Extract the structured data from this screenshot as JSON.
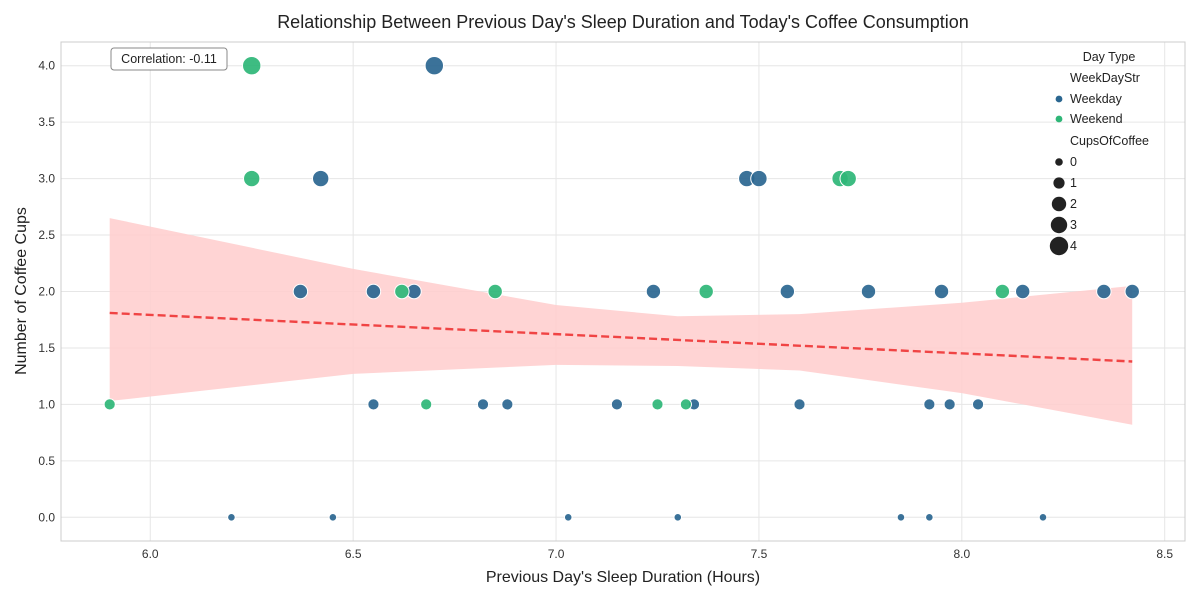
{
  "chart_data": {
    "type": "scatter",
    "title": "Relationship Between Previous Day's Sleep Duration and Today's Coffee Consumption",
    "xlabel": "Previous Day's Sleep Duration (Hours)",
    "ylabel": "Number of Coffee Cups",
    "xlim": [
      5.78,
      8.55
    ],
    "ylim": [
      -0.21,
      4.21
    ],
    "xticks": [
      6.0,
      6.5,
      7.0,
      7.5,
      8.0,
      8.5
    ],
    "xtick_labels": [
      "6.0",
      "6.5",
      "7.0",
      "7.5",
      "8.0",
      "8.5"
    ],
    "yticks": [
      0.0,
      0.5,
      1.0,
      1.5,
      2.0,
      2.5,
      3.0,
      3.5,
      4.0
    ],
    "ytick_labels": [
      "0.0",
      "0.5",
      "1.0",
      "1.5",
      "2.0",
      "2.5",
      "3.0",
      "3.5",
      "4.0"
    ],
    "grid": true,
    "annotation": "Correlation: -0.11",
    "colors": {
      "Weekday": "#2a6690",
      "Weekend": "#2eb677",
      "trend": "#f04444",
      "band": "#ffcccc"
    },
    "legend": {
      "placement": "top-right",
      "hue_title": "Day Type",
      "hue_subtitle": "WeekDayStr",
      "hue_entries": [
        "Weekday",
        "Weekend"
      ],
      "size_title": "CupsOfCoffee",
      "size_entries": [
        "0",
        "1",
        "2",
        "3",
        "4"
      ]
    },
    "trend_line": {
      "x": [
        5.9,
        8.42
      ],
      "y": [
        1.81,
        1.38
      ]
    },
    "confidence_band": {
      "x": [
        5.9,
        6.5,
        7.0,
        7.3,
        7.6,
        8.0,
        8.42
      ],
      "upper": [
        2.65,
        2.2,
        1.88,
        1.78,
        1.8,
        1.9,
        2.05
      ],
      "lower": [
        1.03,
        1.27,
        1.35,
        1.34,
        1.3,
        1.1,
        0.82
      ]
    },
    "series": [
      {
        "name": "Weekday",
        "points": [
          {
            "x": 6.2,
            "y": 0
          },
          {
            "x": 6.45,
            "y": 0
          },
          {
            "x": 7.03,
            "y": 0
          },
          {
            "x": 7.3,
            "y": 0
          },
          {
            "x": 7.85,
            "y": 0
          },
          {
            "x": 7.92,
            "y": 0
          },
          {
            "x": 8.2,
            "y": 0
          },
          {
            "x": 6.55,
            "y": 1
          },
          {
            "x": 6.82,
            "y": 1
          },
          {
            "x": 6.88,
            "y": 1
          },
          {
            "x": 7.15,
            "y": 1
          },
          {
            "x": 7.34,
            "y": 1
          },
          {
            "x": 7.6,
            "y": 1
          },
          {
            "x": 7.92,
            "y": 1
          },
          {
            "x": 7.97,
            "y": 1
          },
          {
            "x": 8.04,
            "y": 1
          },
          {
            "x": 6.37,
            "y": 2
          },
          {
            "x": 6.55,
            "y": 2
          },
          {
            "x": 6.65,
            "y": 2
          },
          {
            "x": 7.24,
            "y": 2
          },
          {
            "x": 7.57,
            "y": 2
          },
          {
            "x": 7.77,
            "y": 2
          },
          {
            "x": 7.95,
            "y": 2
          },
          {
            "x": 8.15,
            "y": 2
          },
          {
            "x": 8.35,
            "y": 2
          },
          {
            "x": 8.42,
            "y": 2
          },
          {
            "x": 6.42,
            "y": 3
          },
          {
            "x": 7.47,
            "y": 3
          },
          {
            "x": 7.5,
            "y": 3
          },
          {
            "x": 6.7,
            "y": 4
          }
        ]
      },
      {
        "name": "Weekend",
        "points": [
          {
            "x": 5.9,
            "y": 1
          },
          {
            "x": 6.68,
            "y": 1
          },
          {
            "x": 7.25,
            "y": 1
          },
          {
            "x": 7.32,
            "y": 1
          },
          {
            "x": 6.62,
            "y": 2
          },
          {
            "x": 6.85,
            "y": 2
          },
          {
            "x": 7.37,
            "y": 2
          },
          {
            "x": 8.1,
            "y": 2
          },
          {
            "x": 6.25,
            "y": 3
          },
          {
            "x": 7.7,
            "y": 3
          },
          {
            "x": 7.72,
            "y": 3
          },
          {
            "x": 6.25,
            "y": 4
          }
        ]
      }
    ]
  }
}
